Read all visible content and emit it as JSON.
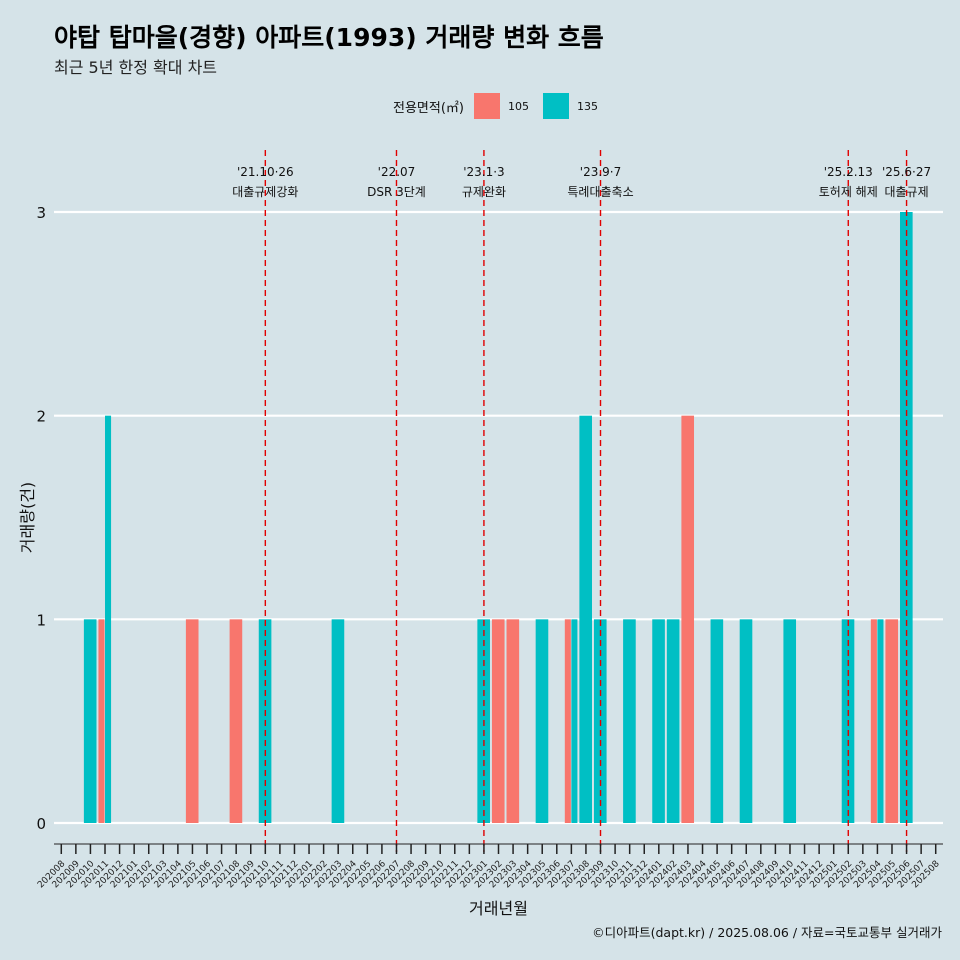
{
  "title": "야탑 탑마을(경향) 아파트(1993) 거래량 변화 흐름",
  "subtitle": "최근 5년 한정 확대 차트",
  "caption": "©디아파트(dapt.kr) / 2025.08.06 / 자료=국토교통부 실거래가",
  "legend": {
    "title": "전용면적(㎡)",
    "items": [
      {
        "label": "105",
        "color": "#f8766d"
      },
      {
        "label": "135",
        "color": "#00bfc4"
      }
    ]
  },
  "chart_data": {
    "type": "bar",
    "xlabel": "거래년월",
    "ylabel": "거래량(건)",
    "ylim": [
      0,
      3
    ],
    "yticks": [
      0,
      1,
      2,
      3
    ],
    "categories": [
      "202008",
      "202009",
      "202010",
      "202011",
      "202012",
      "202101",
      "202102",
      "202103",
      "202104",
      "202105",
      "202106",
      "202107",
      "202108",
      "202109",
      "202110",
      "202111",
      "202112",
      "202201",
      "202202",
      "202203",
      "202204",
      "202205",
      "202206",
      "202207",
      "202208",
      "202209",
      "202210",
      "202211",
      "202212",
      "202301",
      "202302",
      "202303",
      "202304",
      "202305",
      "202306",
      "202307",
      "202308",
      "202309",
      "202310",
      "202311",
      "202312",
      "202401",
      "202402",
      "202403",
      "202404",
      "202405",
      "202406",
      "202407",
      "202408",
      "202409",
      "202410",
      "202411",
      "202412",
      "202501",
      "202502",
      "202503",
      "202504",
      "202505",
      "202506",
      "202507",
      "202508"
    ],
    "series": [
      {
        "name": "105",
        "color": "#f8766d",
        "points": [
          {
            "x": "202011",
            "y": 1
          },
          {
            "x": "202105",
            "y": 1
          },
          {
            "x": "202108",
            "y": 1
          },
          {
            "x": "202302",
            "y": 1
          },
          {
            "x": "202303",
            "y": 1
          },
          {
            "x": "202307",
            "y": 1
          },
          {
            "x": "202403",
            "y": 2
          },
          {
            "x": "202504",
            "y": 1
          },
          {
            "x": "202505",
            "y": 1
          }
        ]
      },
      {
        "name": "135",
        "color": "#00bfc4",
        "points": [
          {
            "x": "202010",
            "y": 1
          },
          {
            "x": "202011",
            "y": 2
          },
          {
            "x": "202110",
            "y": 1
          },
          {
            "x": "202203",
            "y": 1
          },
          {
            "x": "202301",
            "y": 1
          },
          {
            "x": "202305",
            "y": 1
          },
          {
            "x": "202307",
            "y": 1
          },
          {
            "x": "202308",
            "y": 2
          },
          {
            "x": "202309",
            "y": 1
          },
          {
            "x": "202311",
            "y": 1
          },
          {
            "x": "202401",
            "y": 1
          },
          {
            "x": "202402",
            "y": 1
          },
          {
            "x": "202405",
            "y": 1
          },
          {
            "x": "202407",
            "y": 1
          },
          {
            "x": "202410",
            "y": 1
          },
          {
            "x": "202502",
            "y": 1
          },
          {
            "x": "202504",
            "y": 1
          },
          {
            "x": "202506",
            "y": 3
          }
        ]
      }
    ],
    "events": [
      {
        "x": "202110",
        "date": "'21.10·26",
        "label": "대출규제강화"
      },
      {
        "x": "202207",
        "date": "'22.07",
        "label": "DSR 3단계"
      },
      {
        "x": "202301",
        "date": "'23.1·3",
        "label": "규제완화"
      },
      {
        "x": "202309",
        "date": "'23.9·7",
        "label": "특례대출축소"
      },
      {
        "x": "202502",
        "date": "'25.2.13",
        "label": "토허제 해제"
      },
      {
        "x": "202506",
        "date": "'25.6·27",
        "label": "대출규제"
      }
    ]
  }
}
